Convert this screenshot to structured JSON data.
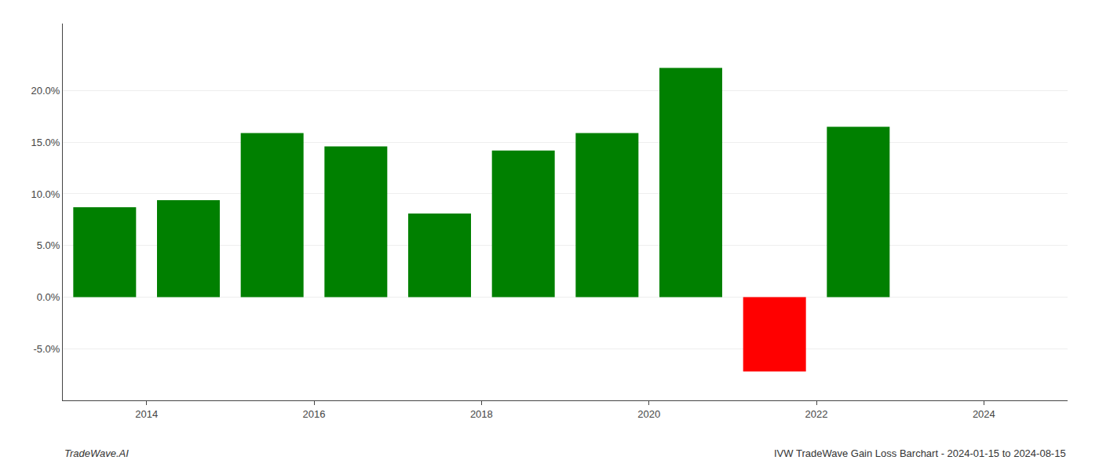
{
  "chart_data": {
    "type": "bar",
    "x": [
      2013.5,
      2014.5,
      2015.5,
      2016.5,
      2017.5,
      2018.5,
      2019.5,
      2020.5,
      2021.5,
      2022.5
    ],
    "values": [
      0.087,
      0.094,
      0.159,
      0.146,
      0.081,
      0.142,
      0.159,
      0.222,
      -0.072,
      0.165
    ],
    "colors": [
      "#008000",
      "#008000",
      "#008000",
      "#008000",
      "#008000",
      "#008000",
      "#008000",
      "#008000",
      "#ff0000",
      "#008000"
    ],
    "xlim": [
      2013.0,
      2025.0
    ],
    "xticks": [
      2014,
      2016,
      2018,
      2020,
      2022,
      2024
    ],
    "ylim": [
      -0.1,
      0.265
    ],
    "yticks": [
      {
        "value": -0.05,
        "label": "-5.0%"
      },
      {
        "value": 0.0,
        "label": "0.0%"
      },
      {
        "value": 0.05,
        "label": "5.0%"
      },
      {
        "value": 0.1,
        "label": "10.0%"
      },
      {
        "value": 0.15,
        "label": "15.0%"
      },
      {
        "value": 0.2,
        "label": "20.0%"
      }
    ],
    "grid": true,
    "annotations": [
      "TradeWave.AI",
      "IVW TradeWave Gain Loss Barchart - 2024-01-15 to 2024-08-15"
    ]
  }
}
